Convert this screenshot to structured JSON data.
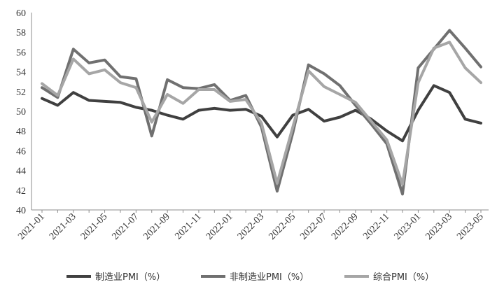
{
  "chart_data": {
    "type": "line",
    "title": "",
    "xlabel": "",
    "ylabel": "",
    "ylim": [
      40,
      60
    ],
    "yticks": [
      "40",
      "42",
      "44",
      "46",
      "48",
      "50",
      "52",
      "54",
      "56",
      "58",
      "60"
    ],
    "grid": false,
    "legend_position": "bottom",
    "x": [
      "2021-01",
      "2021-02",
      "2021-03",
      "2021-04",
      "2021-05",
      "2021-06",
      "2021-07",
      "2021-08",
      "2021-09",
      "2021-10",
      "2021-11",
      "2021-12",
      "2022-01",
      "2022-02",
      "2022-03",
      "2022-04",
      "2022-05",
      "2022-06",
      "2022-07",
      "2022-08",
      "2022-09",
      "2022-10",
      "2022-11",
      "2022-12",
      "2023-01",
      "2023-02",
      "2023-03",
      "2023-04",
      "2023-05"
    ],
    "xtick_labels": [
      "2021-01",
      "2021-03",
      "2021-05",
      "2021-07",
      "2021-09",
      "2021-11",
      "2022-01",
      "2022-03",
      "2022-05",
      "2022-07",
      "2022-09",
      "2022-11",
      "2023-01",
      "2023-03",
      "2023-05"
    ],
    "series": [
      {
        "name": "制造业PMI（%）",
        "color": "#404040",
        "values": [
          51.3,
          50.6,
          51.9,
          51.1,
          51.0,
          50.9,
          50.4,
          50.1,
          49.6,
          49.2,
          50.1,
          50.3,
          50.1,
          50.2,
          49.5,
          47.4,
          49.6,
          50.2,
          49.0,
          49.4,
          50.1,
          49.2,
          48.0,
          47.0,
          50.1,
          52.6,
          51.9,
          49.2,
          48.8
        ]
      },
      {
        "name": "非制造业PMI（%）",
        "color": "#707070",
        "values": [
          52.4,
          51.4,
          56.3,
          54.9,
          55.2,
          53.5,
          53.3,
          47.5,
          53.2,
          52.4,
          52.3,
          52.7,
          51.1,
          51.6,
          48.4,
          41.9,
          47.8,
          54.7,
          53.8,
          52.6,
          50.6,
          48.7,
          46.7,
          41.6,
          54.4,
          56.3,
          58.2,
          56.4,
          54.5
        ]
      },
      {
        "name": "综合PMI（%）",
        "color": "#a6a6a6",
        "values": [
          52.8,
          51.6,
          55.3,
          53.8,
          54.2,
          52.9,
          52.4,
          48.9,
          51.7,
          50.8,
          52.2,
          52.2,
          51.0,
          51.2,
          48.8,
          42.7,
          48.4,
          54.1,
          52.5,
          51.7,
          50.9,
          49.0,
          47.1,
          42.6,
          52.9,
          56.4,
          57.0,
          54.4,
          52.9
        ]
      }
    ]
  }
}
